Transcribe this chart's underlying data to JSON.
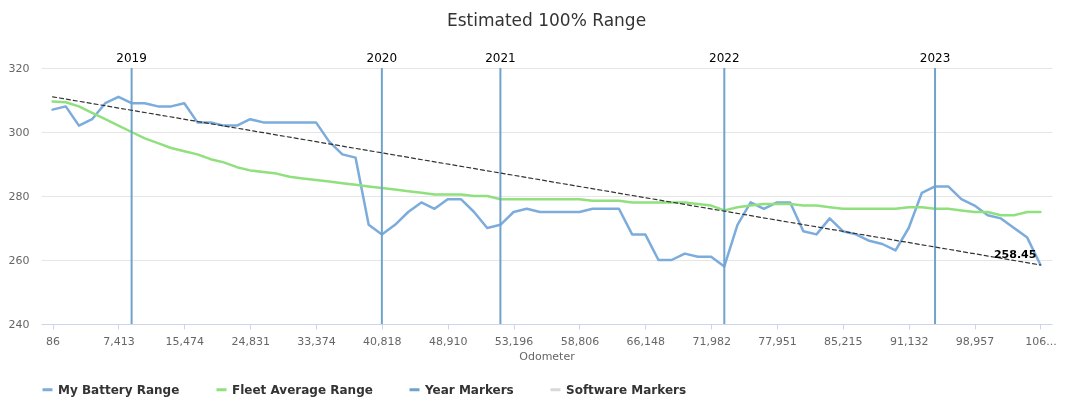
{
  "chart_data": {
    "type": "line",
    "title": "Estimated 100% Range",
    "xlabel": "Odometer",
    "categories": [
      "86",
      null,
      null,
      null,
      null,
      "7,413",
      null,
      null,
      null,
      null,
      "15,474",
      null,
      null,
      null,
      null,
      "24,831",
      null,
      null,
      null,
      null,
      "33,374",
      null,
      null,
      null,
      null,
      "40,818",
      null,
      null,
      null,
      null,
      "48,910",
      null,
      null,
      null,
      null,
      "53,196",
      null,
      null,
      null,
      null,
      "58,806",
      null,
      null,
      null,
      null,
      "66,148",
      null,
      null,
      null,
      null,
      "71,982",
      null,
      null,
      null,
      null,
      "77,951",
      null,
      null,
      null,
      null,
      "85,215",
      null,
      null,
      null,
      null,
      "91,132",
      null,
      null,
      null,
      null,
      "98,957",
      null,
      null,
      null,
      null,
      "106..."
    ],
    "annotations": [
      "2019",
      "2020",
      "2021",
      "2022",
      "2023"
    ],
    "ylim": [
      240,
      320
    ],
    "yticks": [
      240,
      260,
      280,
      300,
      320
    ],
    "grid": "y",
    "legend": "bottom",
    "series": [
      {
        "name": "My Battery Range",
        "color": "#7cacdc",
        "values": [
          307,
          308,
          302,
          304,
          309,
          311,
          309,
          309,
          308,
          308,
          309,
          303,
          303,
          302,
          302,
          304,
          303,
          303,
          303,
          303,
          303,
          297,
          293,
          292,
          271,
          268,
          271,
          275,
          278,
          276,
          279,
          279,
          275,
          270,
          271,
          275,
          276,
          275,
          275,
          275,
          275,
          276,
          276,
          276,
          268,
          268,
          260,
          260,
          262,
          261,
          261,
          258,
          271,
          278,
          276,
          278,
          278,
          269,
          268,
          273,
          269,
          268,
          266,
          265,
          263,
          270,
          281,
          283,
          283,
          279,
          277,
          274,
          273,
          270,
          267,
          258.5
        ]
      },
      {
        "name": "Fleet Average Range",
        "color": "#90e07e",
        "values": [
          309.5,
          309.3,
          308,
          306,
          304,
          302,
          300,
          298,
          296.5,
          295,
          294,
          293,
          291.5,
          290.5,
          289,
          288,
          287.5,
          287,
          286,
          285.5,
          285,
          284.5,
          284,
          283.5,
          283,
          282.5,
          282,
          281.5,
          281,
          280.5,
          280.5,
          280.5,
          280,
          280,
          279,
          279,
          279,
          279,
          279,
          279,
          279,
          278.5,
          278.5,
          278.5,
          278,
          278,
          278,
          278,
          278,
          277.5,
          277,
          275.5,
          276.5,
          277,
          277.5,
          277.5,
          277.5,
          277,
          277,
          276.5,
          276,
          276,
          276,
          276,
          276,
          276.5,
          276.5,
          276,
          276,
          275.5,
          275,
          275,
          274,
          274,
          275,
          275
        ]
      },
      {
        "name": "Year Markers",
        "color": "#6fa3cc",
        "type": "bar",
        "values": [
          null,
          null,
          null,
          null,
          null,
          null,
          320,
          null,
          null,
          null,
          null,
          null,
          null,
          null,
          null,
          null,
          null,
          null,
          null,
          null,
          null,
          null,
          null,
          null,
          null,
          320,
          null,
          null,
          null,
          null,
          null,
          null,
          null,
          null,
          320,
          null,
          null,
          null,
          null,
          null,
          null,
          null,
          null,
          null,
          null,
          null,
          null,
          null,
          null,
          null,
          null,
          320,
          null,
          null,
          null,
          null,
          null,
          null,
          null,
          null,
          null,
          null,
          null,
          null,
          null,
          null,
          null,
          320,
          null,
          null,
          null,
          null,
          null,
          null,
          null,
          null
        ]
      },
      {
        "name": "Software Markers",
        "color": "#d8d8d8",
        "values": [
          null,
          null,
          null,
          null,
          null,
          null,
          null,
          null,
          null,
          null,
          null,
          null,
          null,
          null,
          null,
          null,
          null,
          null,
          null,
          null,
          null,
          null,
          null,
          null,
          null,
          null,
          null,
          null,
          null,
          null,
          null,
          null,
          null,
          null,
          null,
          null,
          null,
          null,
          null,
          null,
          null,
          null,
          null,
          null,
          null,
          null,
          null,
          null,
          null,
          null,
          null,
          null,
          null,
          null,
          null,
          null,
          null,
          null,
          null,
          null,
          null,
          null,
          null,
          null,
          null,
          null,
          null,
          null,
          null,
          null,
          null,
          null,
          null,
          null,
          null,
          null
        ]
      },
      {
        "color": "#333333",
        "line_style": "dashed",
        "values": [
          311,
          null,
          null,
          null,
          null,
          null,
          null,
          null,
          null,
          null,
          null,
          null,
          null,
          null,
          null,
          null,
          null,
          null,
          null,
          null,
          null,
          null,
          null,
          null,
          null,
          null,
          null,
          null,
          null,
          null,
          null,
          null,
          null,
          null,
          null,
          null,
          null,
          null,
          null,
          null,
          null,
          null,
          null,
          null,
          null,
          null,
          null,
          null,
          null,
          null,
          null,
          null,
          null,
          null,
          null,
          null,
          null,
          null,
          null,
          null,
          null,
          null,
          null,
          null,
          null,
          null,
          null,
          null,
          null,
          null,
          null,
          null,
          null,
          null,
          null,
          258.45
        ],
        "value_labels": [
          null,
          null,
          null,
          null,
          null,
          null,
          null,
          null,
          null,
          null,
          null,
          null,
          null,
          null,
          null,
          null,
          null,
          null,
          null,
          null,
          null,
          null,
          null,
          null,
          null,
          null,
          null,
          null,
          null,
          null,
          null,
          null,
          null,
          null,
          null,
          null,
          null,
          null,
          null,
          null,
          null,
          null,
          null,
          null,
          null,
          null,
          null,
          null,
          null,
          null,
          null,
          null,
          null,
          null,
          null,
          null,
          null,
          null,
          null,
          null,
          null,
          null,
          null,
          null,
          null,
          null,
          null,
          null,
          null,
          null,
          null,
          null,
          null,
          null,
          null,
          "258.45"
        ]
      }
    ]
  }
}
